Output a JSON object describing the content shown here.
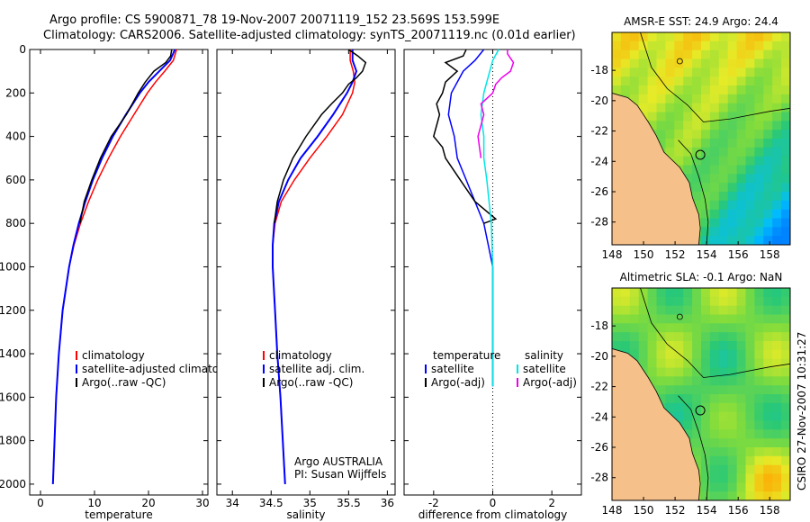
{
  "header": {
    "line1": "Argo profile: CS 5900871_78 19-Nov-2007 20071119_152 23.569S 153.599E",
    "line2": "Climatology: CARS2006. Satellite-adjusted climatology: synTS_20071119.nc (0.01d earlier)"
  },
  "side_label": "CSIRO 27-Nov-2007 10:31:27",
  "colors": {
    "climatology": "#ff0000",
    "satellite": "#0000ff",
    "argo": "#000000",
    "sal_satellite": "#00e5e5",
    "sal_argo": "#ee00ee",
    "land": "#f5c08a"
  },
  "chart_data": [
    {
      "type": "line",
      "id": "temperature",
      "xlabel": "temperature",
      "ylabel": "",
      "xlim": [
        -2,
        31
      ],
      "ylim": [
        2050,
        0
      ],
      "xticks": [
        0,
        10,
        20,
        30
      ],
      "yticks": [
        0,
        200,
        400,
        600,
        800,
        1000,
        1200,
        1400,
        1600,
        1800,
        2000
      ],
      "legend": [
        "climatology",
        "satellite-adjusted climatology",
        "Argo(..raw -QC)"
      ],
      "series": [
        {
          "name": "climatology",
          "depth": [
            0,
            50,
            100,
            150,
            200,
            300,
            400,
            500,
            600,
            700,
            800,
            900,
            1000,
            1200,
            1400,
            1600,
            1800,
            2000
          ],
          "values": [
            25.2,
            24.6,
            23.0,
            21.3,
            19.8,
            17.3,
            14.8,
            12.6,
            10.6,
            8.9,
            7.4,
            6.2,
            5.3,
            4.1,
            3.4,
            2.9,
            2.6,
            2.3
          ]
        },
        {
          "name": "satellite-adjusted climatology",
          "depth": [
            0,
            50,
            100,
            150,
            200,
            300,
            400,
            500,
            600,
            700,
            800,
            900,
            1000,
            1200,
            1400,
            1600,
            1800,
            2000
          ],
          "values": [
            24.9,
            24.0,
            22.0,
            20.0,
            18.4,
            15.8,
            13.4,
            11.4,
            9.7,
            8.3,
            7.1,
            6.1,
            5.3,
            4.1,
            3.4,
            2.9,
            2.6,
            2.3
          ]
        },
        {
          "name": "Argo(..raw -QC)",
          "depth": [
            0,
            30,
            60,
            100,
            150,
            200,
            250,
            300,
            400,
            500,
            600,
            700,
            800
          ],
          "values": [
            24.3,
            24.1,
            23.2,
            21.0,
            19.4,
            18.1,
            17.0,
            15.9,
            13.1,
            11.1,
            9.5,
            8.1,
            7.3
          ]
        }
      ]
    },
    {
      "type": "line",
      "id": "salinity",
      "xlabel": "salinity",
      "ylabel": "",
      "xlim": [
        33.8,
        36.1
      ],
      "ylim": [
        2050,
        0
      ],
      "xticks": [
        34,
        34.5,
        35,
        35.5,
        36
      ],
      "legend": [
        "climatology",
        "satellite adj. clim.",
        "Argo(..raw -QC)"
      ],
      "annotation": [
        "Argo AUSTRALIA",
        "PI: Susan Wijffels"
      ],
      "series": [
        {
          "name": "climatology",
          "depth": [
            0,
            50,
            100,
            150,
            200,
            300,
            400,
            500,
            600,
            700,
            800,
            900,
            1000,
            1200,
            1400,
            1600,
            1800,
            2000
          ],
          "values": [
            35.52,
            35.52,
            35.56,
            35.58,
            35.55,
            35.42,
            35.22,
            35.0,
            34.8,
            34.63,
            34.55,
            34.52,
            34.52,
            34.55,
            34.58,
            34.62,
            34.65,
            34.68
          ]
        },
        {
          "name": "satellite adj. clim.",
          "depth": [
            0,
            50,
            100,
            150,
            200,
            300,
            400,
            500,
            600,
            700,
            800,
            900,
            1000,
            1200,
            1400,
            1600,
            1800,
            2000
          ],
          "values": [
            35.55,
            35.55,
            35.6,
            35.55,
            35.48,
            35.3,
            35.1,
            34.88,
            34.72,
            34.6,
            34.54,
            34.52,
            34.52,
            34.55,
            34.58,
            34.62,
            34.65,
            34.68
          ]
        },
        {
          "name": "Argo(..raw -QC)",
          "depth": [
            0,
            30,
            60,
            100,
            130,
            160,
            200,
            250,
            300,
            400,
            500,
            600,
            700,
            800
          ],
          "values": [
            35.5,
            35.62,
            35.72,
            35.68,
            35.6,
            35.5,
            35.42,
            35.28,
            35.15,
            34.95,
            34.78,
            34.66,
            34.58,
            34.54
          ]
        }
      ]
    },
    {
      "type": "line",
      "id": "difference",
      "xlabel": "difference from climatology",
      "ylabel": "",
      "xlim": [
        -3,
        3
      ],
      "ylim": [
        2050,
        0
      ],
      "xticks": [
        -2,
        0,
        2
      ],
      "legend_temperature": {
        "title": "temperature",
        "items": [
          "satellite",
          "Argo(-adj)"
        ]
      },
      "legend_salinity": {
        "title": "salinity",
        "items": [
          "satellite",
          "Argo(-adj)"
        ]
      },
      "series": [
        {
          "name": "temperature satellite",
          "depth": [
            0,
            50,
            100,
            200,
            300,
            400,
            500,
            600,
            800,
            1000,
            1200,
            1400,
            1500,
            1550
          ],
          "values": [
            -0.3,
            -0.6,
            -1.0,
            -1.4,
            -1.5,
            -1.3,
            -1.2,
            -0.9,
            -0.3,
            0.0,
            0.0,
            0.0,
            0.0,
            0.0
          ]
        },
        {
          "name": "temperature Argo(-adj)",
          "depth": [
            0,
            30,
            60,
            100,
            150,
            200,
            250,
            300,
            350,
            400,
            450,
            500,
            600,
            700,
            780,
            800
          ],
          "values": [
            -0.9,
            -1.0,
            -1.6,
            -1.2,
            -1.6,
            -1.7,
            -1.9,
            -1.8,
            -1.9,
            -2.0,
            -1.7,
            -1.6,
            -1.1,
            -0.6,
            0.1,
            -0.3
          ]
        },
        {
          "name": "salinity satellite",
          "depth": [
            0,
            50,
            100,
            200,
            300,
            400,
            500,
            600,
            800,
            1000,
            1200,
            1400,
            1500,
            1550
          ],
          "values": [
            0.2,
            0.0,
            -0.1,
            -0.3,
            -0.4,
            -0.3,
            -0.3,
            -0.2,
            -0.05,
            0.0,
            0.0,
            0.0,
            0.0,
            0.0
          ]
        },
        {
          "name": "salinity Argo(-adj)",
          "depth": [
            0,
            20,
            40,
            60,
            100,
            130,
            160,
            200,
            250,
            300,
            400,
            500
          ],
          "values": [
            0.5,
            0.5,
            0.6,
            0.7,
            0.6,
            0.3,
            0.1,
            0.0,
            -0.4,
            -0.3,
            -0.5,
            -0.4
          ]
        }
      ]
    },
    {
      "type": "heatmap",
      "id": "sst-map",
      "title": "AMSR-E SST: 24.9 Argo: 24.4",
      "xlim": [
        148,
        159.3
      ],
      "ylim": [
        -29.5,
        -15.5
      ],
      "xticks": [
        148,
        150,
        152,
        154,
        156,
        158
      ],
      "yticks": [
        -18,
        -20,
        -22,
        -24,
        -26,
        -28
      ]
    },
    {
      "type": "heatmap",
      "id": "sla-map",
      "title": "Altimetric SLA: -0.1 Argo: NaN",
      "xlim": [
        148,
        159.3
      ],
      "ylim": [
        -29.5,
        -15.5
      ],
      "xticks": [
        148,
        150,
        152,
        154,
        156,
        158
      ],
      "yticks": [
        -18,
        -20,
        -22,
        -24,
        -26,
        -28
      ]
    }
  ]
}
